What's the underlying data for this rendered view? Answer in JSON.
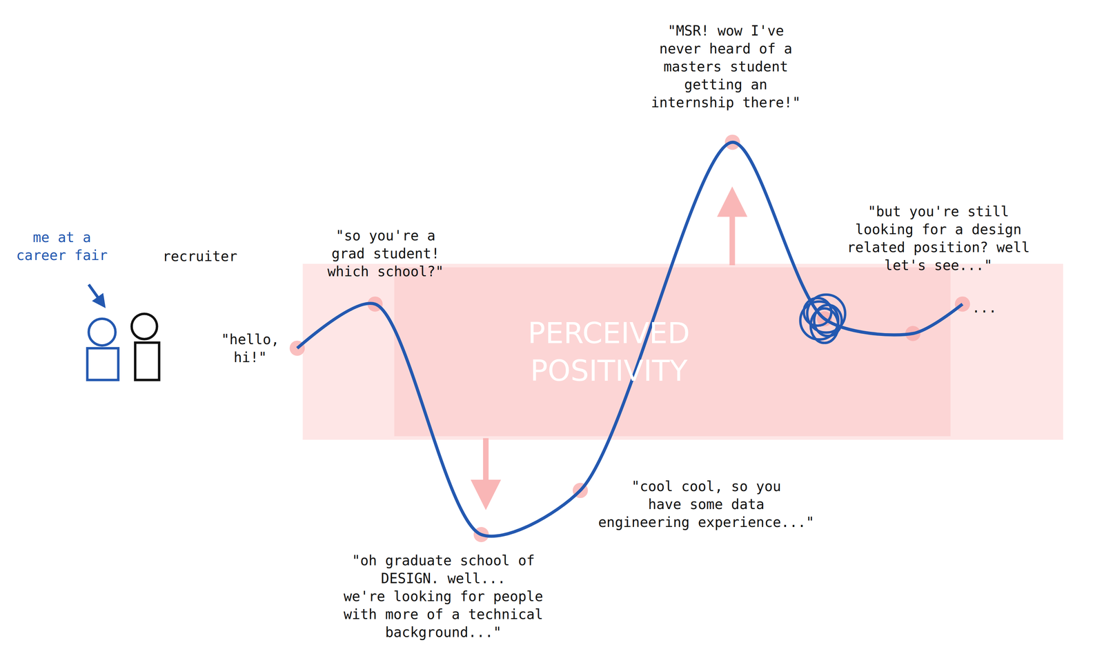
{
  "chart_data": {
    "type": "line",
    "x": [
      0,
      11,
      26,
      40,
      61.5,
      74.5,
      87,
      94
    ],
    "values": [
      48,
      57,
      10,
      19,
      90,
      54,
      51,
      57
    ],
    "annotations": [
      "\"hello,\nhi!\"",
      "\"so you're a\ngrad student!\nwhich school?\"",
      "\"oh graduate school of\nDESIGN. well...\nwe're looking for people\nwith more of a technical\nbackground...\"",
      "\"cool cool, so you\nhave some data\nengineering experience...\"",
      "\"MSR! wow I've\nnever heard of a\nmasters student\ngetting an\ninternship there!\"",
      "\"but you're still\nlooking for a design\nrelated position? well\nlet's see...\"",
      null,
      "..."
    ],
    "labels": {
      "me": "me at a\ncareer fair",
      "recruiter": "recruiter",
      "band": "PERCEIVED\nPOSITIVITY"
    },
    "xlim": [
      -42,
      114
    ],
    "ylim": [
      -17,
      119
    ],
    "tick_labels": false,
    "grid": false,
    "color": "#2358b0",
    "line_style": "smooth"
  }
}
